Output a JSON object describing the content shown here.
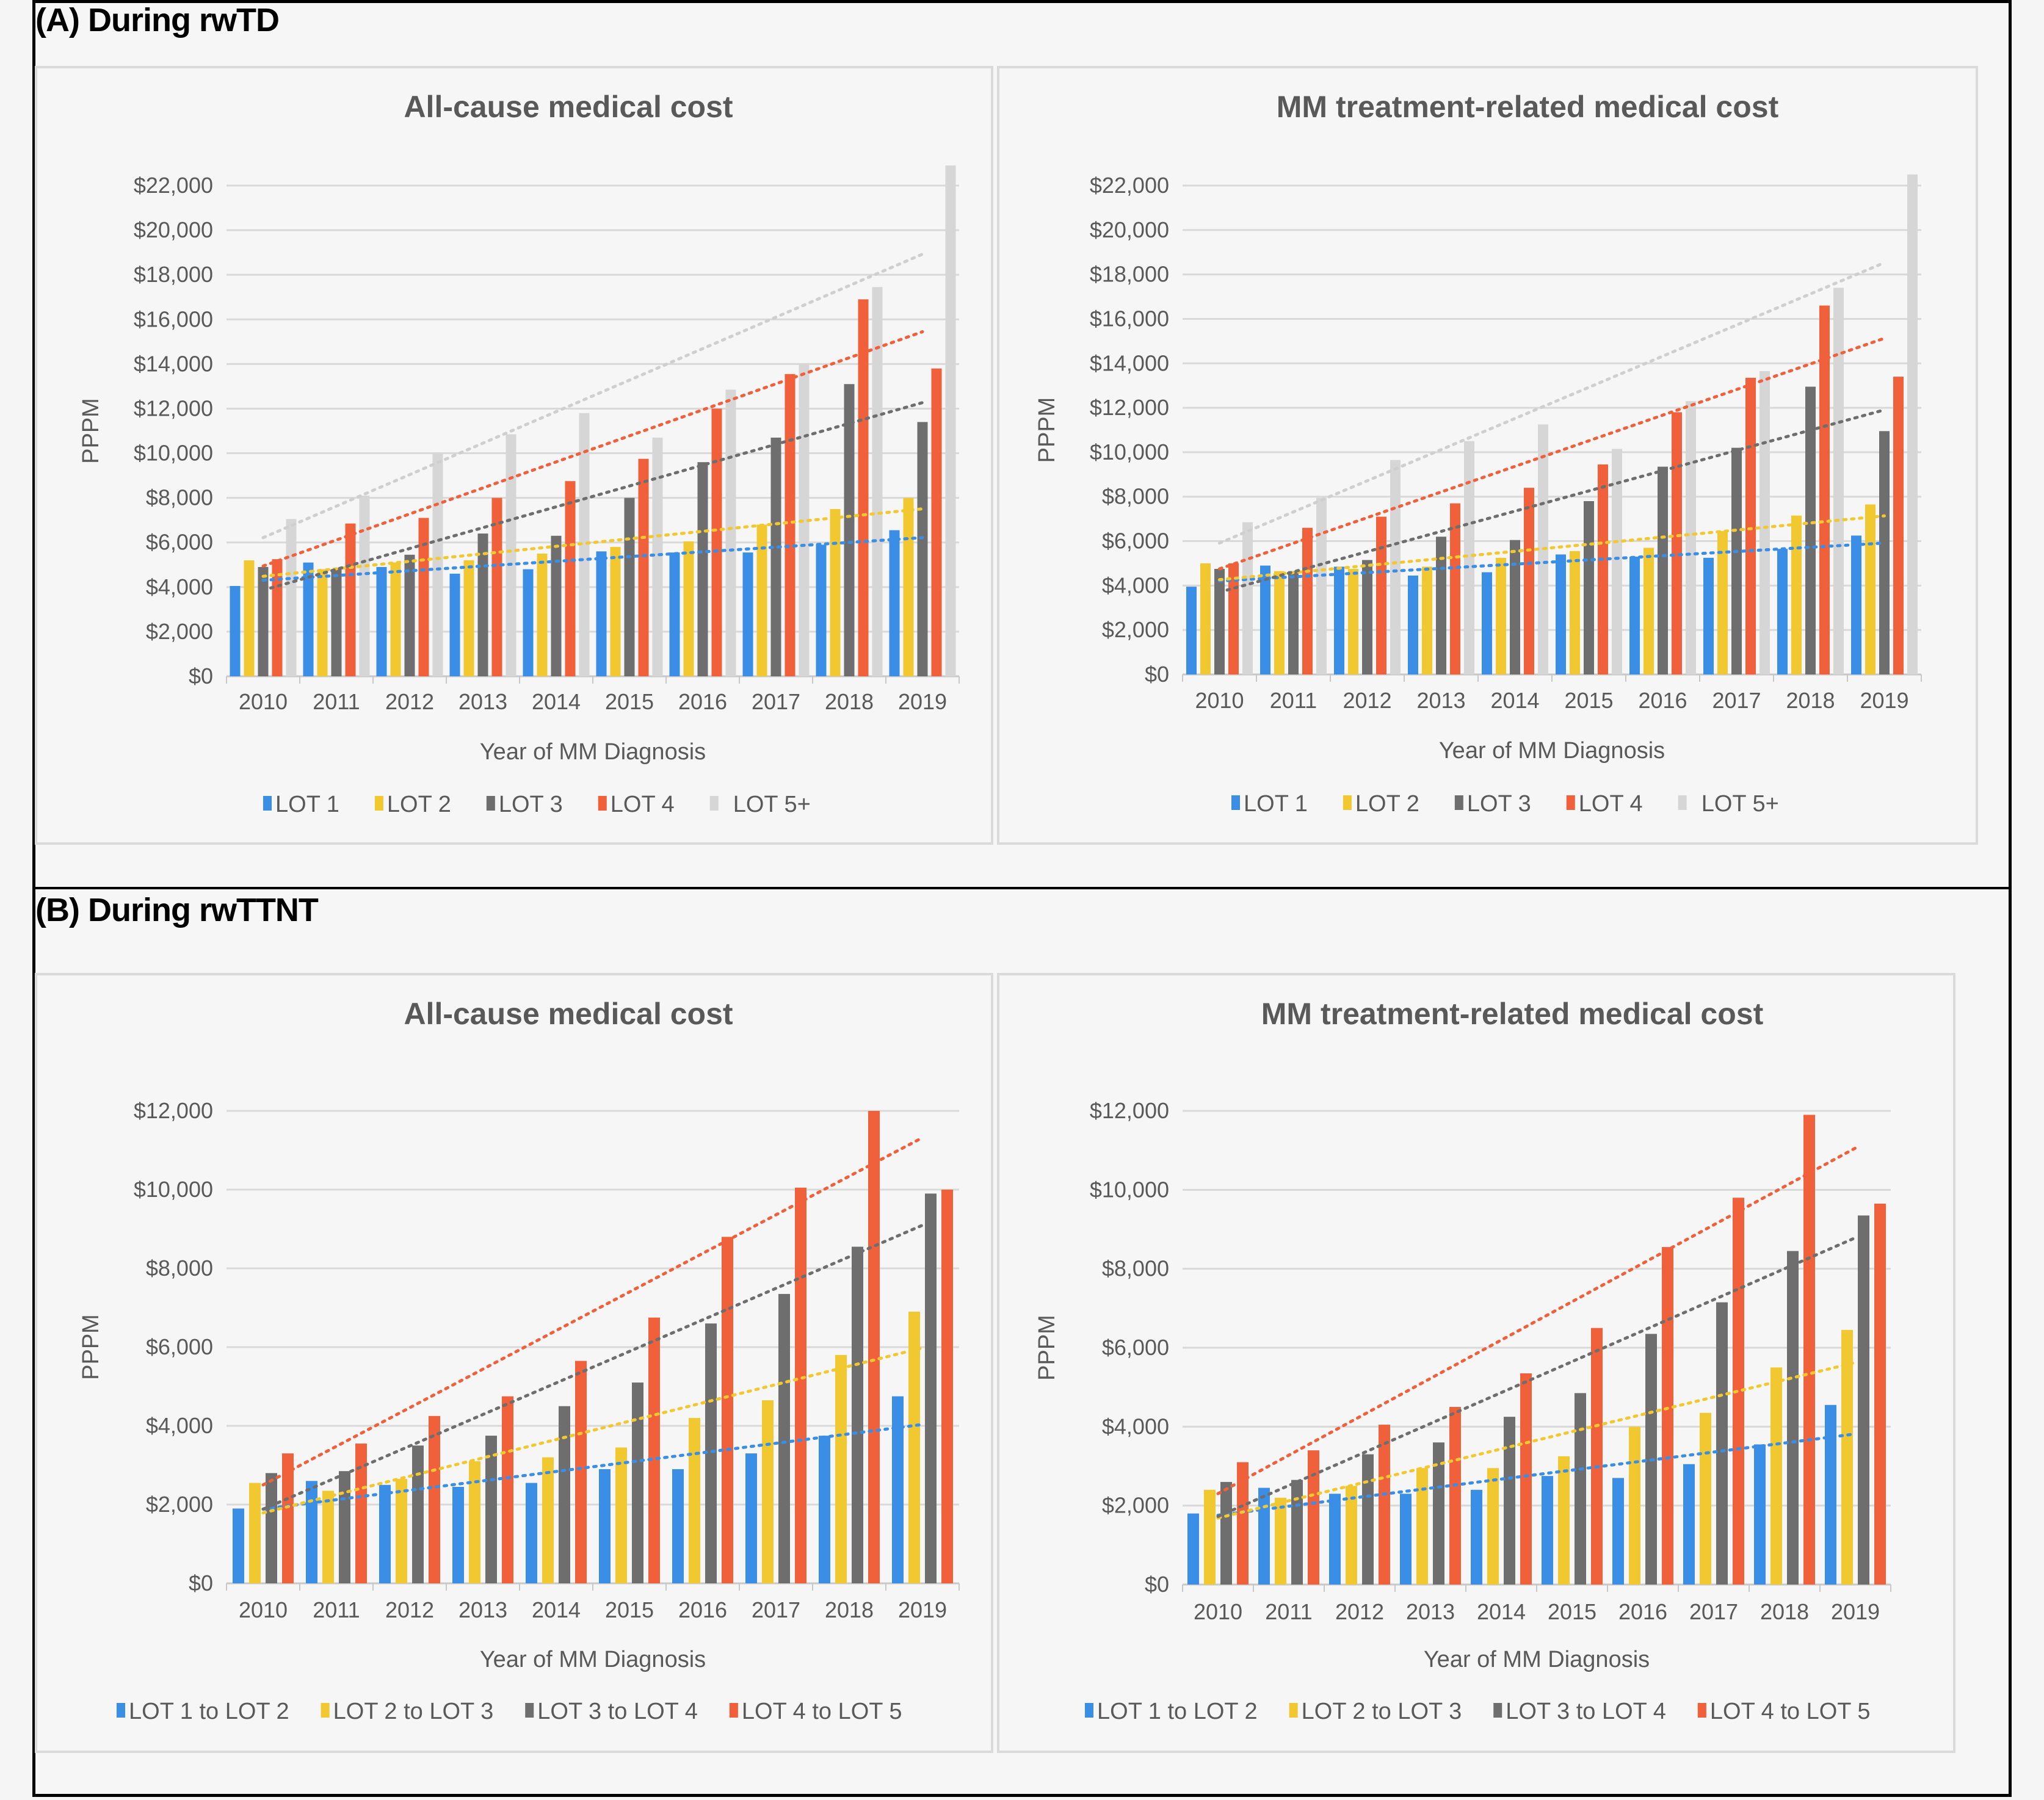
{
  "panels": [
    {
      "label": "(A) During rwTD"
    },
    {
      "label": "(B) During rwTTNT"
    }
  ],
  "chart_data": [
    {
      "id": "A-left",
      "panel": "(A) During rwTD",
      "type": "bar",
      "title": "All-cause medical cost",
      "xlabel": "Year of MM  Diagnosis",
      "ylabel": "PPPM",
      "ylim": [
        0,
        22000
      ],
      "ytick_step": 2000,
      "ytick_labels": [
        "$0",
        "$2,000",
        "$4,000",
        "$6,000",
        "$8,000",
        "$10,000",
        "$12,000",
        "$14,000",
        "$16,000",
        "$18,000",
        "$20,000",
        "$22,000"
      ],
      "grid": true,
      "legend_position": "bottom",
      "trendlines": "linear, dotted, per series",
      "categories": [
        "2010",
        "2011",
        "2012",
        "2013",
        "2014",
        "2015",
        "2016",
        "2017",
        "2018",
        "2019"
      ],
      "series": [
        {
          "name": "LOT 1",
          "color": "#3a8ee6",
          "values": [
            4050,
            5100,
            4900,
            4600,
            4800,
            5600,
            5550,
            5550,
            5900,
            6550
          ]
        },
        {
          "name": "LOT 2",
          "color": "#f2c830",
          "values": [
            5200,
            4800,
            5100,
            5200,
            5500,
            5800,
            6050,
            6800,
            7500,
            8000
          ]
        },
        {
          "name": "LOT 3",
          "color": "#6e6e6e",
          "values": [
            4900,
            4800,
            5450,
            6400,
            6300,
            8000,
            9600,
            10700,
            13100,
            11400
          ]
        },
        {
          "name": "LOT 4",
          "color": "#f0603a",
          "values": [
            5250,
            6850,
            7100,
            8000,
            8750,
            9750,
            12000,
            13550,
            16900,
            13800
          ]
        },
        {
          "name": "LOT 5+",
          "color": "#d6d6d6",
          "values": [
            7050,
            8100,
            10000,
            10850,
            11800,
            10700,
            12850,
            14000,
            17450,
            22900
          ]
        }
      ]
    },
    {
      "id": "A-right",
      "panel": "(A) During rwTD",
      "type": "bar",
      "title": "MM treatment-related medical cost",
      "xlabel": "Year of MM  Diagnosis",
      "ylabel": "PPPM",
      "ylim": [
        0,
        22000
      ],
      "ytick_step": 2000,
      "ytick_labels": [
        "$0",
        "$2,000",
        "$4,000",
        "$6,000",
        "$8,000",
        "$10,000",
        "$12,000",
        "$14,000",
        "$16,000",
        "$18,000",
        "$20,000",
        "$22,000"
      ],
      "grid": true,
      "legend_position": "bottom",
      "trendlines": "linear, dotted, per series",
      "categories": [
        "2010",
        "2011",
        "2012",
        "2013",
        "2014",
        "2015",
        "2016",
        "2017",
        "2018",
        "2019"
      ],
      "series": [
        {
          "name": "LOT 1",
          "color": "#3a8ee6",
          "values": [
            3950,
            4900,
            4850,
            4450,
            4600,
            5400,
            5300,
            5250,
            5650,
            6250
          ]
        },
        {
          "name": "LOT 2",
          "color": "#f2c830",
          "values": [
            5000,
            4650,
            4750,
            4850,
            5250,
            5550,
            5700,
            6450,
            7150,
            7650
          ]
        },
        {
          "name": "LOT 3",
          "color": "#6e6e6e",
          "values": [
            4750,
            4650,
            5150,
            6200,
            6050,
            7800,
            9350,
            10200,
            12950,
            10950
          ]
        },
        {
          "name": "LOT 4",
          "color": "#f0603a",
          "values": [
            5000,
            6600,
            7100,
            7700,
            8400,
            9450,
            11800,
            13350,
            16600,
            13400
          ]
        },
        {
          "name": "LOT 5+",
          "color": "#d6d6d6",
          "values": [
            6850,
            7950,
            9650,
            10500,
            11250,
            10150,
            12300,
            13650,
            17400,
            22500
          ]
        }
      ]
    },
    {
      "id": "B-left",
      "panel": "(B) During rwTTNT",
      "type": "bar",
      "title": "All-cause medical cost",
      "xlabel": "Year of MM  Diagnosis",
      "ylabel": "PPPM",
      "ylim": [
        0,
        12000
      ],
      "ytick_step": 2000,
      "ytick_labels": [
        "$0",
        "$2,000",
        "$4,000",
        "$6,000",
        "$8,000",
        "$10,000",
        "$12,000"
      ],
      "grid": true,
      "legend_position": "bottom",
      "trendlines": "linear, dotted, per series",
      "categories": [
        "2010",
        "2011",
        "2012",
        "2013",
        "2014",
        "2015",
        "2016",
        "2017",
        "2018",
        "2019"
      ],
      "series": [
        {
          "name": "LOT 1 to LOT 2",
          "color": "#3a8ee6",
          "values": [
            1900,
            2600,
            2500,
            2450,
            2550,
            2900,
            2900,
            3300,
            3750,
            4750
          ]
        },
        {
          "name": "LOT 2 to LOT 3",
          "color": "#f2c830",
          "values": [
            2550,
            2350,
            2650,
            3100,
            3200,
            3450,
            4200,
            4650,
            5800,
            6900
          ]
        },
        {
          "name": "LOT 3 to LOT 4",
          "color": "#6e6e6e",
          "values": [
            2800,
            2850,
            3500,
            3750,
            4500,
            5100,
            6600,
            7350,
            8550,
            9900
          ]
        },
        {
          "name": "LOT 4 to LOT 5",
          "color": "#f0603a",
          "values": [
            3300,
            3550,
            4250,
            4750,
            5650,
            6750,
            8800,
            10050,
            12000,
            10000
          ]
        }
      ]
    },
    {
      "id": "B-right",
      "panel": "(B) During rwTTNT",
      "type": "bar",
      "title": "MM treatment-related medical cost",
      "xlabel": "Year of MM  Diagnosis",
      "ylabel": "PPPM",
      "ylim": [
        0,
        12000
      ],
      "ytick_step": 2000,
      "ytick_labels": [
        "$0",
        "$2,000",
        "$4,000",
        "$6,000",
        "$8,000",
        "$10,000",
        "$12,000"
      ],
      "grid": true,
      "legend_position": "bottom",
      "trendlines": "linear, dotted, per series",
      "categories": [
        "2010",
        "2011",
        "2012",
        "2013",
        "2014",
        "2015",
        "2016",
        "2017",
        "2018",
        "2019"
      ],
      "series": [
        {
          "name": "LOT 1 to LOT 2",
          "color": "#3a8ee6",
          "values": [
            1800,
            2450,
            2300,
            2300,
            2400,
            2750,
            2700,
            3050,
            3550,
            4550
          ]
        },
        {
          "name": "LOT 2 to LOT 3",
          "color": "#f2c830",
          "values": [
            2400,
            2200,
            2500,
            2950,
            2950,
            3250,
            4000,
            4350,
            5500,
            6450
          ]
        },
        {
          "name": "LOT 3 to LOT 4",
          "color": "#6e6e6e",
          "values": [
            2600,
            2650,
            3300,
            3600,
            4250,
            4850,
            6350,
            7150,
            8450,
            9350
          ]
        },
        {
          "name": "LOT 4 to LOT 5",
          "color": "#f0603a",
          "values": [
            3100,
            3400,
            4050,
            4500,
            5350,
            6500,
            8550,
            9800,
            11900,
            9650
          ]
        }
      ]
    }
  ]
}
